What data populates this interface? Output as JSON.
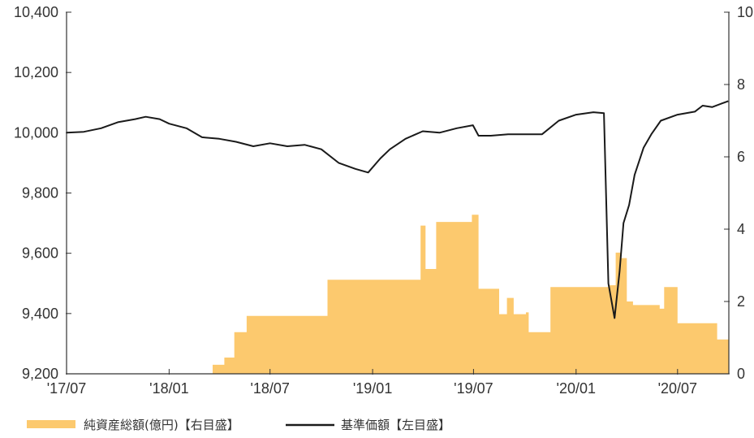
{
  "chart_data": {
    "type": "bar+line",
    "x_tick_labels": [
      "'17/07",
      "'18/01",
      "'18/07",
      "'19/01",
      "'19/07",
      "'20/01",
      "'20/07"
    ],
    "x_range": [
      "2017-07",
      "2020-10"
    ],
    "left_axis": {
      "ticks": [
        9200,
        9400,
        9600,
        9800,
        10000,
        10200,
        10400
      ],
      "tick_labels": [
        "9,200",
        "9,400",
        "9,600",
        "9,800",
        "10,000",
        "10,200",
        "10,400"
      ],
      "range": [
        9200,
        10400
      ]
    },
    "right_axis": {
      "ticks": [
        0,
        2,
        4,
        6,
        8,
        10
      ],
      "tick_labels": [
        "0",
        "2",
        "4",
        "6",
        "8",
        "10"
      ],
      "range": [
        0,
        10
      ]
    },
    "grid": false,
    "legend_position": "bottom-left",
    "series": [
      {
        "name": "純資産総額(億円)【右目盛】",
        "type": "area",
        "axis": "right",
        "color": "#fcc96e",
        "x": [
          "2018-03-20",
          "2018-04-10",
          "2018-04-28",
          "2018-05-20",
          "2018-06-06",
          "2018-09-25",
          "2018-10-12",
          "2019-03-01",
          "2019-03-28",
          "2019-04-06",
          "2019-04-25",
          "2019-06-01",
          "2019-06-28",
          "2019-07-10",
          "2019-08-02",
          "2019-08-16",
          "2019-08-30",
          "2019-09-11",
          "2019-10-03",
          "2019-10-08",
          "2019-11-01",
          "2019-11-16",
          "2020-02-17",
          "2020-02-28",
          "2020-03-12",
          "2020-03-22",
          "2020-04-01",
          "2020-04-12",
          "2020-05-30",
          "2020-06-07",
          "2020-06-18",
          "2020-07-01",
          "2020-08-20",
          "2020-09-10",
          "2020-09-30"
        ],
        "values": [
          0.25,
          0.45,
          1.15,
          1.6,
          1.6,
          1.6,
          2.6,
          2.6,
          4.1,
          2.9,
          4.2,
          4.2,
          4.4,
          2.35,
          2.35,
          1.65,
          2.1,
          1.65,
          1.7,
          1.15,
          1.15,
          2.4,
          2.4,
          2.45,
          3.35,
          3.2,
          2.0,
          1.9,
          1.8,
          2.4,
          2.4,
          1.4,
          1.4,
          0.95,
          0.95
        ]
      },
      {
        "name": "基準価額【左目盛】",
        "type": "line",
        "axis": "left",
        "color": "#1a1a1a",
        "x": [
          "2017-07-01",
          "2017-08-01",
          "2017-09-01",
          "2017-10-01",
          "2017-11-01",
          "2017-11-20",
          "2017-12-15",
          "2018-01-01",
          "2018-02-01",
          "2018-03-01",
          "2018-04-01",
          "2018-05-01",
          "2018-06-01",
          "2018-07-01",
          "2018-08-01",
          "2018-09-01",
          "2018-10-01",
          "2018-11-01",
          "2018-12-01",
          "2018-12-24",
          "2019-01-15",
          "2019-02-01",
          "2019-03-01",
          "2019-04-01",
          "2019-05-01",
          "2019-06-01",
          "2019-06-30",
          "2019-07-10",
          "2019-08-01",
          "2019-09-01",
          "2019-10-01",
          "2019-11-01",
          "2019-12-01",
          "2020-01-01",
          "2020-02-01",
          "2020-02-20",
          "2020-02-28",
          "2020-03-10",
          "2020-03-19",
          "2020-03-26",
          "2020-04-05",
          "2020-04-15",
          "2020-05-01",
          "2020-05-15",
          "2020-06-01",
          "2020-07-01",
          "2020-08-01",
          "2020-08-15",
          "2020-09-01",
          "2020-09-30"
        ],
        "values": [
          10000,
          10003,
          10015,
          10035,
          10045,
          10053,
          10045,
          10030,
          10015,
          9985,
          9980,
          9970,
          9955,
          9965,
          9955,
          9960,
          9945,
          9900,
          9880,
          9868,
          9915,
          9945,
          9980,
          10005,
          10000,
          10015,
          10025,
          9990,
          9990,
          9995,
          9995,
          9995,
          10040,
          10060,
          10068,
          10065,
          9500,
          9385,
          9540,
          9700,
          9760,
          9860,
          9950,
          9995,
          10040,
          10060,
          10070,
          10090,
          10085,
          10105
        ]
      }
    ]
  }
}
